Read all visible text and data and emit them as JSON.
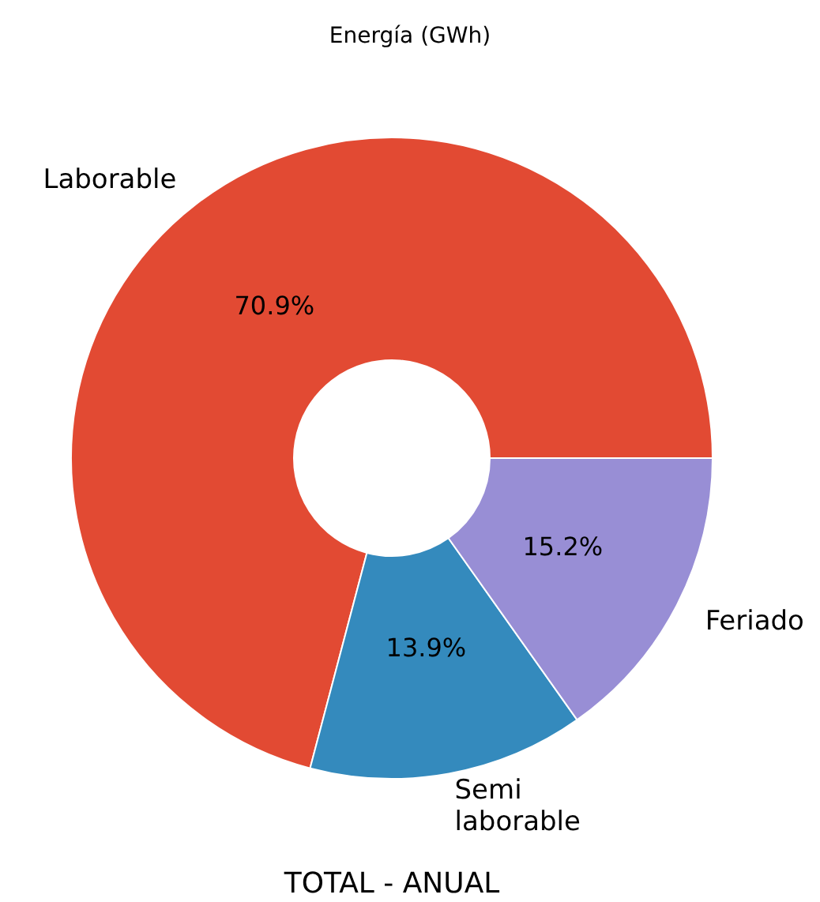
{
  "chart_data": {
    "type": "donut",
    "title": "Energía (GWh)",
    "xlabel": "TOTAL - ANUAL",
    "categories": [
      "Laborable",
      "Semi\nlaborable",
      "Feriado"
    ],
    "values": [
      70.9,
      13.9,
      15.2
    ],
    "colors": [
      "#e24a33",
      "#348abd",
      "#988ed5"
    ],
    "value_labels": [
      "70.9%",
      "13.9%",
      "15.2%"
    ]
  }
}
